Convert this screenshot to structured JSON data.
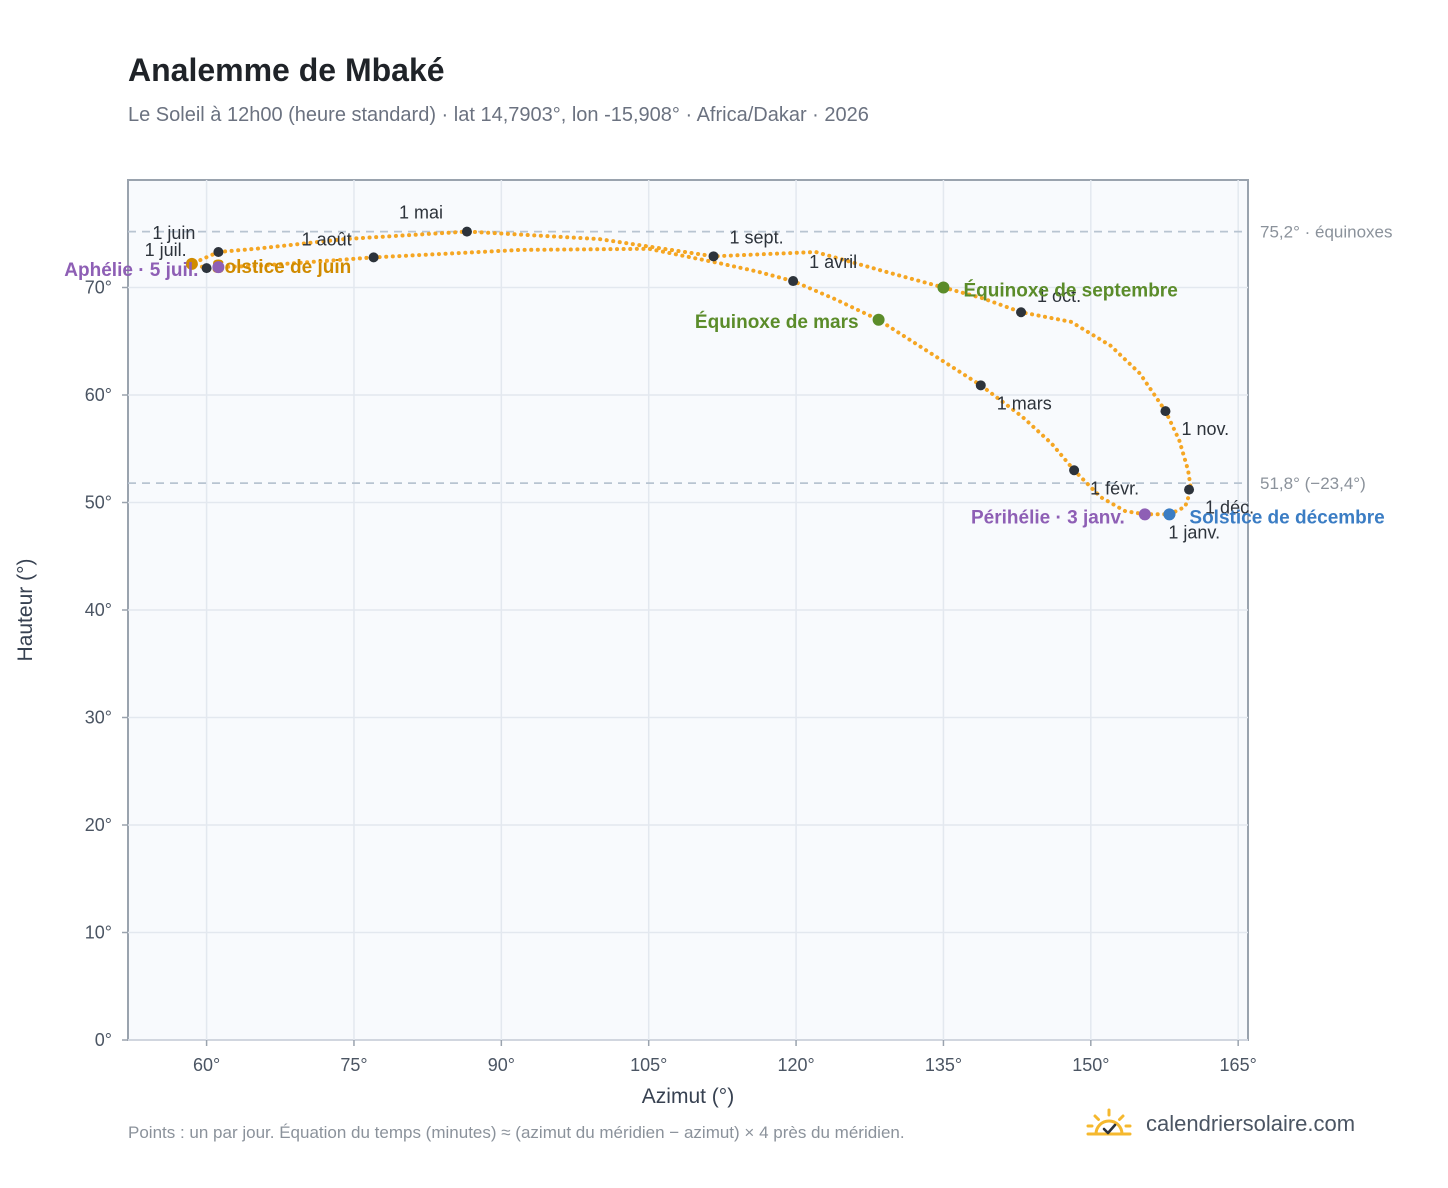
{
  "header": {
    "title": "Analemme de Mbaké",
    "subtitle": "Le Soleil à 12h00 (heure standard) · lat 14,7903°, lon -15,908° · Africa/Dakar · 2026"
  },
  "footer": {
    "note": "Points : un par jour. Équation du temps (minutes) ≈ (azimut du méridien − azimut) × 4 près du méridien.",
    "brand": "calendriersolaire.com",
    "brand_icon": "sun-logo-icon"
  },
  "colors": {
    "curve": "#f5a623",
    "month_point": "#2d333b",
    "equinox": "#5b8c2a",
    "solstice_june": "#d08b00",
    "solstice_december": "#3b7dc4",
    "apsis": "#8e5fb5",
    "reference_line": "#b8c4d1",
    "plot_bg": "#f8fafd",
    "grid": "#e3e8ef",
    "frame": "#9aa3ae"
  },
  "chart_data": {
    "type": "scatter",
    "title": "Analemme de Mbaké",
    "xlabel": "Azimut (°)",
    "ylabel": "Hauteur (°)",
    "xlim": [
      52,
      166
    ],
    "ylim": [
      0,
      80
    ],
    "x_ticks": [
      60,
      75,
      90,
      105,
      120,
      135,
      150,
      165
    ],
    "x_tick_labels": [
      "60°",
      "75°",
      "90°",
      "105°",
      "120°",
      "135°",
      "150°",
      "165°"
    ],
    "y_ticks": [
      0,
      10,
      20,
      30,
      40,
      50,
      60,
      70
    ],
    "y_tick_labels": [
      "0°",
      "10°",
      "20°",
      "30°",
      "40°",
      "50°",
      "60°",
      "70°"
    ],
    "grid": true,
    "reference_lines": [
      {
        "y": 75.2,
        "label": "75,2° · équinoxes"
      },
      {
        "y": 51.8,
        "label": "51,8° (−23,4°)"
      }
    ],
    "analemma_path": [
      [
        158.0,
        48.9
      ],
      [
        159.6,
        49.6
      ],
      [
        160.2,
        51.2
      ],
      [
        159.9,
        53.0
      ],
      [
        159.0,
        55.8
      ],
      [
        157.6,
        58.5
      ],
      [
        155.0,
        62.0
      ],
      [
        152.0,
        64.6
      ],
      [
        148.0,
        66.8
      ],
      [
        142.9,
        67.7
      ],
      [
        139.0,
        69.0
      ],
      [
        135.0,
        70.0
      ],
      [
        129.0,
        71.5
      ],
      [
        122.0,
        73.3
      ],
      [
        111.6,
        72.9
      ],
      [
        100.0,
        74.5
      ],
      [
        86.5,
        75.2
      ],
      [
        74.0,
        74.5
      ],
      [
        65.0,
        73.6
      ],
      [
        61.2,
        73.3
      ],
      [
        58.5,
        72.2
      ],
      [
        60.0,
        71.8
      ],
      [
        61.2,
        71.9
      ],
      [
        65.0,
        72.0
      ],
      [
        77.0,
        72.8
      ],
      [
        92.0,
        73.5
      ],
      [
        105.0,
        73.6
      ],
      [
        112.0,
        72.3
      ],
      [
        116.0,
        71.5
      ],
      [
        119.7,
        70.6
      ],
      [
        124.0,
        68.9
      ],
      [
        128.4,
        67.0
      ],
      [
        133.0,
        64.3
      ],
      [
        138.8,
        60.9
      ],
      [
        143.0,
        58.0
      ],
      [
        146.0,
        55.5
      ],
      [
        148.3,
        53.0
      ],
      [
        151.0,
        50.5
      ],
      [
        153.5,
        49.2
      ],
      [
        155.5,
        48.9
      ],
      [
        158.0,
        48.9
      ]
    ],
    "month_points": [
      {
        "label": "1 janv.",
        "x": 158.1,
        "y": 48.9
      },
      {
        "label": "1 févr.",
        "x": 148.3,
        "y": 53.0
      },
      {
        "label": "1 mars",
        "x": 138.8,
        "y": 60.9
      },
      {
        "label": "1 avril",
        "x": 119.7,
        "y": 70.6
      },
      {
        "label": "1 mai",
        "x": 86.5,
        "y": 75.2
      },
      {
        "label": "1 juin",
        "x": 61.2,
        "y": 73.3
      },
      {
        "label": "1 juil.",
        "x": 60.0,
        "y": 71.8
      },
      {
        "label": "1 août",
        "x": 77.0,
        "y": 72.8
      },
      {
        "label": "1 sept.",
        "x": 111.6,
        "y": 72.9
      },
      {
        "label": "1 oct.",
        "x": 142.9,
        "y": 67.7
      },
      {
        "label": "1 nov.",
        "x": 157.6,
        "y": 58.5
      },
      {
        "label": "1 déc.",
        "x": 160.0,
        "y": 51.2
      }
    ],
    "events": [
      {
        "label": "Équinoxe de mars",
        "x": 128.4,
        "y": 67.0,
        "kind": "equinox"
      },
      {
        "label": "Équinoxe de septembre",
        "x": 135.0,
        "y": 70.0,
        "kind": "equinox"
      },
      {
        "label": "Solstice de juin",
        "x": 58.5,
        "y": 72.2,
        "kind": "solstice_june"
      },
      {
        "label": "Solstice de décembre",
        "x": 158.0,
        "y": 48.9,
        "kind": "solstice_december"
      },
      {
        "label": "Aphélie · 5 juil.",
        "x": 61.2,
        "y": 71.9,
        "kind": "apsis"
      },
      {
        "label": "Périhélie · 3 janv.",
        "x": 155.5,
        "y": 48.9,
        "kind": "apsis"
      }
    ]
  }
}
